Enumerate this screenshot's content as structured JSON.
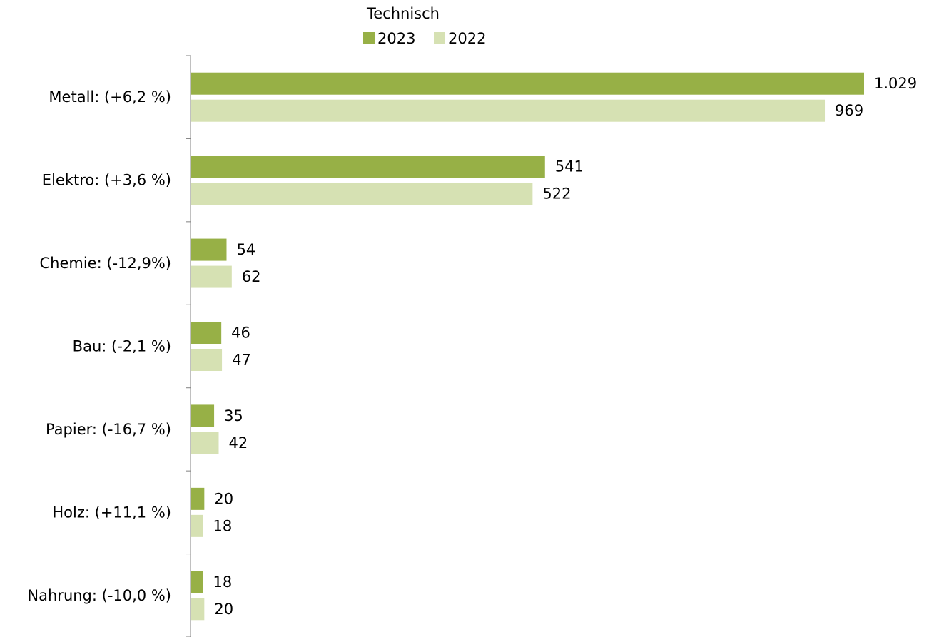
{
  "chart_data": {
    "type": "bar",
    "orientation": "horizontal",
    "legend_title": "Technisch",
    "legend_position": "top",
    "categories": [
      "Metall: (+6,2 %)",
      "Elektro: (+3,6 %)",
      "Chemie: (-12,9%)",
      "Bau: (-2,1 %)",
      "Papier: (-16,7 %)",
      "Holz: (+11,1 %)",
      "Nahrung: (-10,0 %)"
    ],
    "series": [
      {
        "name": "2023",
        "color": "#97b046",
        "values": [
          1029,
          541,
          54,
          46,
          35,
          20,
          18
        ],
        "labels": [
          "1.029",
          "541",
          "54",
          "46",
          "35",
          "20",
          "18"
        ]
      },
      {
        "name": "2022",
        "color": "#d6e1b3",
        "values": [
          969,
          522,
          62,
          47,
          42,
          18,
          20
        ],
        "labels": [
          "969",
          "522",
          "62",
          "47",
          "42",
          "18",
          "20"
        ]
      }
    ],
    "xlim": [
      0,
      1029
    ],
    "grid": false,
    "x_axis_visible": false
  }
}
